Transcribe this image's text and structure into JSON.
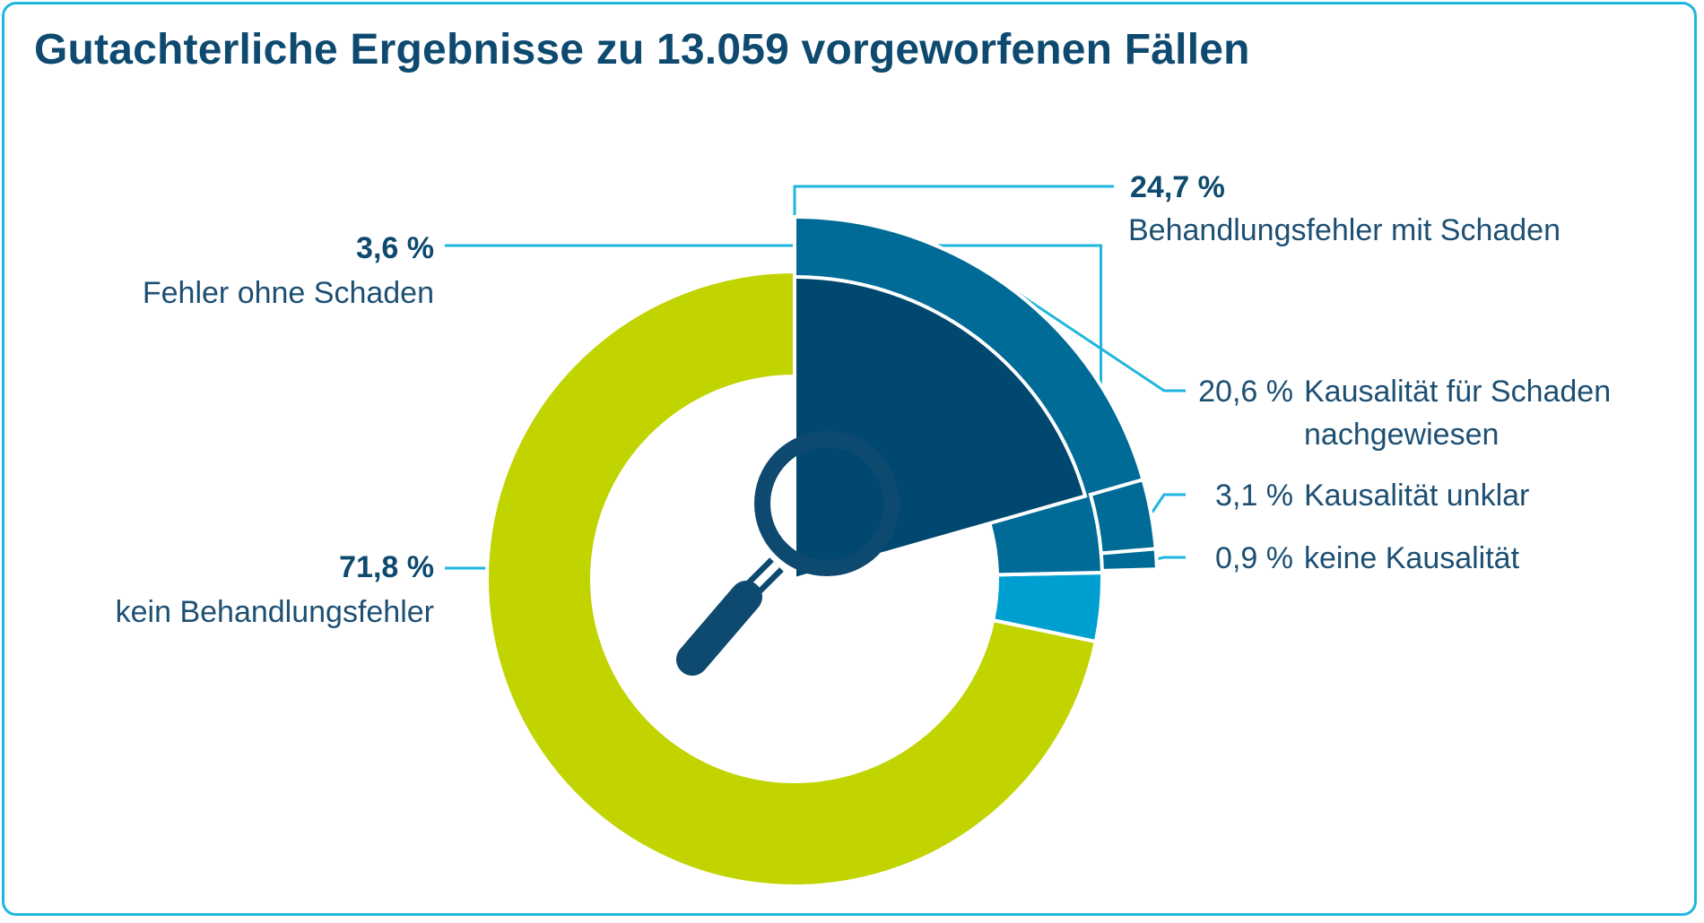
{
  "title": "Gutachterliche Ergebnisse zu 13.059 vorgeworfenen Fällen",
  "chart_data": {
    "type": "pie",
    "variant": "nested-donut",
    "title": "Gutachterliche Ergebnisse zu 13.059 vorgeworfenen Fällen",
    "slices": [
      {
        "id": "mit_schaden",
        "value": 24.7,
        "pct_label": "24,7 %",
        "label": "Behandlungsfehler mit Schaden",
        "color": "#006b96"
      },
      {
        "id": "ohne_schaden",
        "value": 3.6,
        "pct_label": "3,6 %",
        "label": "Fehler ohne Schaden",
        "color": "#009fd1"
      },
      {
        "id": "kein_fehler",
        "value": 71.8,
        "pct_label": "71,8 %",
        "label": "kein Behandlungsfehler",
        "color": "#c1d400"
      }
    ],
    "sub_breakdown": {
      "parent": "mit_schaden",
      "items": [
        {
          "id": "nachgewiesen",
          "value": 20.6,
          "pct_label": "20,6 %",
          "label_line1": "Kausalität für Schaden",
          "label_line2": "nachgewiesen",
          "color": "#00486f"
        },
        {
          "id": "unklar",
          "value": 3.1,
          "pct_label": "3,1 %",
          "label_line1": "Kausalität unklar",
          "color": "#006b96"
        },
        {
          "id": "keine",
          "value": 0.9,
          "pct_label": "0,9 %",
          "label_line1": "keine Kausalität",
          "color": "#006b96"
        }
      ]
    },
    "center_icon": "magnifier-icon",
    "leader_color": "#1fb6e0",
    "outline_color": "#1fb6e0"
  }
}
